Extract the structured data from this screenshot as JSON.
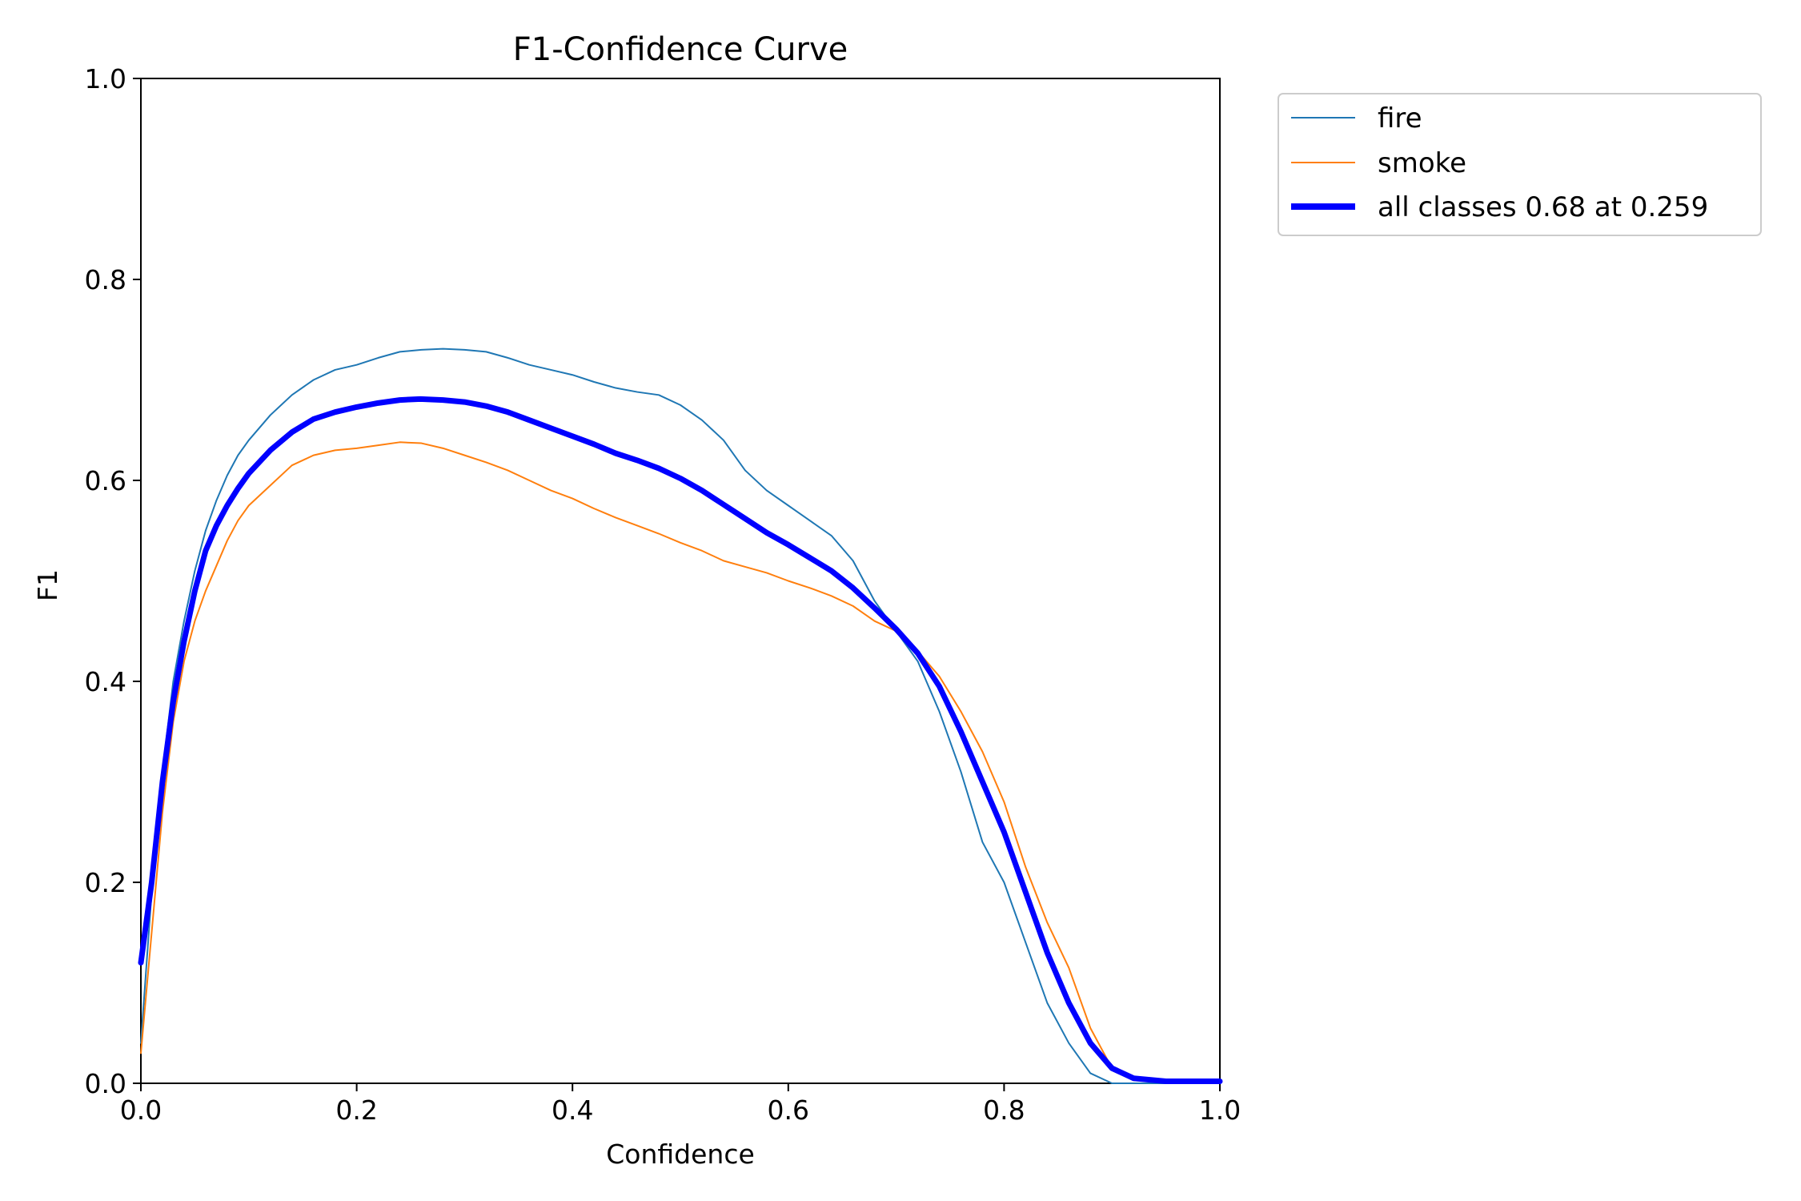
{
  "chart_data": {
    "type": "line",
    "title": "F1-Confidence Curve",
    "xlabel": "Confidence",
    "ylabel": "F1",
    "xlim": [
      0.0,
      1.0
    ],
    "ylim": [
      0.0,
      1.0
    ],
    "x_ticks": [
      "0.0",
      "0.2",
      "0.4",
      "0.6",
      "0.8",
      "1.0"
    ],
    "y_ticks": [
      "0.0",
      "0.2",
      "0.4",
      "0.6",
      "0.8",
      "1.0"
    ],
    "grid": false,
    "legend_position": "outside-top-right",
    "series": [
      {
        "name": "fire",
        "color": "#1f77b4",
        "line_width": 2,
        "x": [
          0.0,
          0.01,
          0.02,
          0.03,
          0.04,
          0.05,
          0.06,
          0.07,
          0.08,
          0.09,
          0.1,
          0.12,
          0.14,
          0.16,
          0.18,
          0.2,
          0.22,
          0.24,
          0.26,
          0.28,
          0.3,
          0.32,
          0.34,
          0.36,
          0.38,
          0.4,
          0.42,
          0.44,
          0.46,
          0.48,
          0.5,
          0.52,
          0.54,
          0.56,
          0.58,
          0.6,
          0.62,
          0.64,
          0.66,
          0.68,
          0.7,
          0.72,
          0.74,
          0.76,
          0.78,
          0.8,
          0.82,
          0.84,
          0.86,
          0.88,
          0.9,
          0.92,
          0.95,
          1.0
        ],
        "values": [
          0.04,
          0.19,
          0.31,
          0.4,
          0.46,
          0.51,
          0.55,
          0.58,
          0.605,
          0.625,
          0.64,
          0.665,
          0.685,
          0.7,
          0.71,
          0.715,
          0.722,
          0.728,
          0.73,
          0.731,
          0.73,
          0.728,
          0.722,
          0.715,
          0.71,
          0.705,
          0.698,
          0.692,
          0.688,
          0.685,
          0.675,
          0.66,
          0.64,
          0.61,
          0.59,
          0.575,
          0.56,
          0.545,
          0.52,
          0.48,
          0.45,
          0.42,
          0.37,
          0.31,
          0.24,
          0.2,
          0.14,
          0.08,
          0.04,
          0.01,
          0.0,
          0.0,
          0.0,
          0.0
        ]
      },
      {
        "name": "smoke",
        "color": "#ff7f0e",
        "line_width": 2,
        "x": [
          0.0,
          0.01,
          0.02,
          0.03,
          0.04,
          0.05,
          0.06,
          0.07,
          0.08,
          0.09,
          0.1,
          0.12,
          0.14,
          0.16,
          0.18,
          0.2,
          0.22,
          0.24,
          0.26,
          0.28,
          0.3,
          0.32,
          0.34,
          0.36,
          0.38,
          0.4,
          0.42,
          0.44,
          0.46,
          0.48,
          0.5,
          0.52,
          0.54,
          0.56,
          0.58,
          0.6,
          0.62,
          0.64,
          0.66,
          0.68,
          0.7,
          0.72,
          0.74,
          0.76,
          0.78,
          0.8,
          0.82,
          0.84,
          0.86,
          0.88,
          0.9,
          0.92,
          0.95,
          1.0
        ],
        "values": [
          0.03,
          0.15,
          0.27,
          0.36,
          0.42,
          0.46,
          0.49,
          0.515,
          0.54,
          0.56,
          0.575,
          0.595,
          0.615,
          0.625,
          0.63,
          0.632,
          0.635,
          0.638,
          0.637,
          0.632,
          0.625,
          0.618,
          0.61,
          0.6,
          0.59,
          0.582,
          0.572,
          0.563,
          0.555,
          0.547,
          0.538,
          0.53,
          0.52,
          0.514,
          0.508,
          0.5,
          0.493,
          0.485,
          0.475,
          0.46,
          0.45,
          0.43,
          0.405,
          0.37,
          0.33,
          0.28,
          0.215,
          0.16,
          0.115,
          0.055,
          0.015,
          0.003,
          0.001,
          0.0
        ]
      },
      {
        "name": "all classes 0.68 at 0.259",
        "color": "#0000ff",
        "line_width": 7,
        "x": [
          0.0,
          0.01,
          0.02,
          0.03,
          0.04,
          0.05,
          0.06,
          0.07,
          0.08,
          0.09,
          0.1,
          0.12,
          0.14,
          0.16,
          0.18,
          0.2,
          0.22,
          0.24,
          0.259,
          0.28,
          0.3,
          0.32,
          0.34,
          0.36,
          0.38,
          0.4,
          0.42,
          0.44,
          0.46,
          0.48,
          0.5,
          0.52,
          0.54,
          0.56,
          0.58,
          0.6,
          0.62,
          0.64,
          0.66,
          0.68,
          0.7,
          0.72,
          0.74,
          0.76,
          0.78,
          0.8,
          0.82,
          0.84,
          0.86,
          0.88,
          0.9,
          0.92,
          0.95,
          1.0
        ],
        "values": [
          0.12,
          0.2,
          0.3,
          0.38,
          0.44,
          0.49,
          0.53,
          0.555,
          0.575,
          0.592,
          0.607,
          0.63,
          0.648,
          0.661,
          0.668,
          0.673,
          0.677,
          0.68,
          0.681,
          0.68,
          0.678,
          0.674,
          0.668,
          0.66,
          0.652,
          0.644,
          0.636,
          0.627,
          0.62,
          0.612,
          0.602,
          0.59,
          0.576,
          0.562,
          0.548,
          0.536,
          0.523,
          0.51,
          0.493,
          0.473,
          0.452,
          0.428,
          0.395,
          0.35,
          0.3,
          0.25,
          0.19,
          0.13,
          0.08,
          0.04,
          0.015,
          0.005,
          0.002,
          0.002
        ]
      }
    ]
  }
}
